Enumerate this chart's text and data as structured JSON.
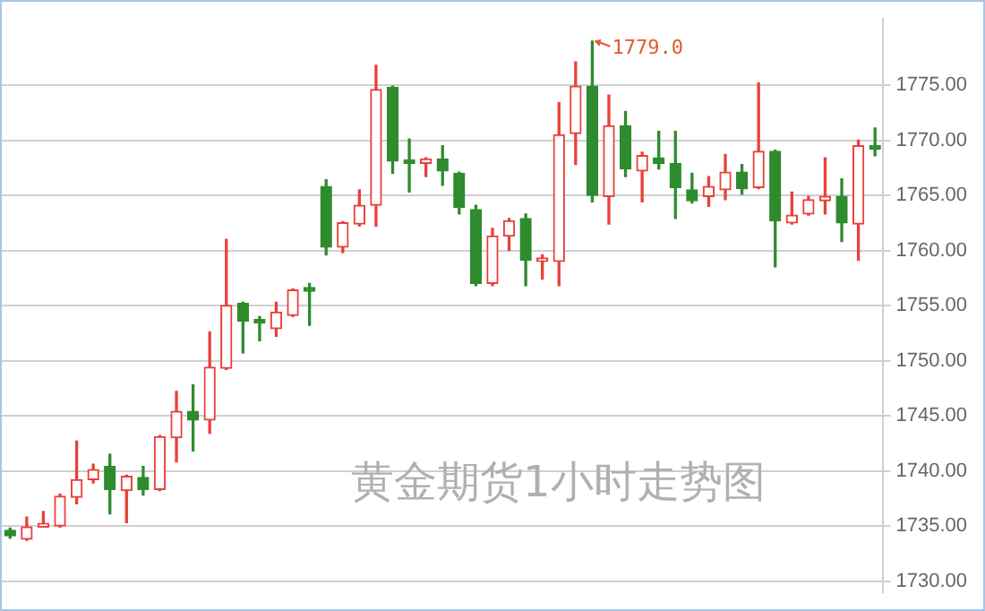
{
  "chart_data": {
    "type": "candlestick",
    "title": "黄金期货1小时走势图",
    "categories": [
      null,
      null,
      null,
      null,
      null,
      null,
      null,
      null,
      null,
      null,
      null,
      null,
      null,
      null,
      null,
      null,
      null,
      null,
      null,
      null,
      null,
      null,
      null,
      null,
      null,
      null,
      null,
      null,
      null,
      null,
      null,
      null,
      null,
      null,
      null,
      null,
      null,
      null,
      null,
      null,
      null,
      null,
      null,
      null,
      null,
      null,
      null,
      null,
      null,
      null,
      null,
      null,
      null
    ],
    "ohlc": [
      [
        1734.6,
        1734.8,
        1733.9,
        1734.1
      ],
      [
        1733.8,
        1735.8,
        1733.7,
        1734.9
      ],
      [
        1734.9,
        1736.3,
        1734.9,
        1735.1
      ],
      [
        1735.0,
        1737.9,
        1734.9,
        1737.7
      ],
      [
        1737.6,
        1742.7,
        1737.0,
        1739.2
      ],
      [
        1739.2,
        1740.6,
        1738.9,
        1740.1
      ],
      [
        1740.4,
        1741.5,
        1736.1,
        1738.3
      ],
      [
        1738.2,
        1739.6,
        1735.3,
        1739.5
      ],
      [
        1739.4,
        1740.4,
        1737.8,
        1738.3
      ],
      [
        1738.3,
        1743.2,
        1738.2,
        1743.1
      ],
      [
        1743.0,
        1747.2,
        1740.8,
        1745.4
      ],
      [
        1745.4,
        1747.8,
        1741.8,
        1744.6
      ],
      [
        1744.6,
        1752.6,
        1743.4,
        1749.4
      ],
      [
        1749.3,
        1761.0,
        1749.2,
        1755.0
      ],
      [
        1755.2,
        1755.3,
        1750.7,
        1753.6
      ],
      [
        1753.5,
        1754.0,
        1751.8,
        1753.4
      ],
      [
        1752.9,
        1755.3,
        1752.2,
        1754.4
      ],
      [
        1754.1,
        1756.5,
        1754.0,
        1756.4
      ],
      [
        1756.4,
        1757.0,
        1753.2,
        1756.3
      ],
      [
        1765.8,
        1766.4,
        1759.6,
        1760.3
      ],
      [
        1760.3,
        1762.6,
        1759.8,
        1762.5
      ],
      [
        1762.4,
        1765.5,
        1762.2,
        1764.1
      ],
      [
        1764.1,
        1776.8,
        1762.2,
        1774.6
      ],
      [
        1774.8,
        1774.9,
        1767.0,
        1768.1
      ],
      [
        1768.0,
        1770.1,
        1765.3,
        1767.9
      ],
      [
        1767.9,
        1768.4,
        1766.7,
        1768.3
      ],
      [
        1768.3,
        1769.5,
        1765.9,
        1767.2
      ],
      [
        1767.0,
        1767.1,
        1763.3,
        1763.9
      ],
      [
        1763.7,
        1764.1,
        1756.8,
        1757.0
      ],
      [
        1757.0,
        1762.0,
        1756.8,
        1761.3
      ],
      [
        1761.3,
        1762.9,
        1760.0,
        1762.7
      ],
      [
        1762.9,
        1763.3,
        1756.8,
        1759.1
      ],
      [
        1759.0,
        1759.6,
        1757.4,
        1759.2
      ],
      [
        1759.0,
        1773.4,
        1756.8,
        1770.5
      ],
      [
        1770.6,
        1777.1,
        1767.8,
        1774.9
      ],
      [
        1774.9,
        1779.0,
        1764.4,
        1765.0
      ],
      [
        1764.9,
        1774.1,
        1762.4,
        1771.3
      ],
      [
        1771.3,
        1772.6,
        1766.7,
        1767.4
      ],
      [
        1767.2,
        1768.9,
        1764.4,
        1768.6
      ],
      [
        1768.4,
        1770.8,
        1767.4,
        1767.9
      ],
      [
        1767.9,
        1770.8,
        1762.9,
        1765.7
      ],
      [
        1765.5,
        1767.0,
        1764.3,
        1764.5
      ],
      [
        1764.9,
        1766.7,
        1764.0,
        1765.8
      ],
      [
        1765.5,
        1768.7,
        1764.6,
        1767.1
      ],
      [
        1767.1,
        1767.8,
        1765.1,
        1765.6
      ],
      [
        1765.7,
        1775.2,
        1765.6,
        1769.0
      ],
      [
        1769.0,
        1769.1,
        1758.5,
        1762.7
      ],
      [
        1762.5,
        1765.3,
        1762.4,
        1763.2
      ],
      [
        1763.3,
        1764.9,
        1763.2,
        1764.6
      ],
      [
        1764.5,
        1768.4,
        1763.3,
        1764.9
      ],
      [
        1764.9,
        1766.5,
        1760.8,
        1762.5
      ],
      [
        1762.4,
        1770.0,
        1759.1,
        1769.5
      ],
      [
        1769.5,
        1771.1,
        1768.6,
        1769.2
      ]
    ],
    "colors": [
      "#2e8b2e",
      "#e8413a",
      "#e8413a",
      "#e8413a",
      "#e8413a",
      "#e8413a",
      "#2e8b2e",
      "#e8413a",
      "#2e8b2e",
      "#e8413a",
      "#e8413a",
      "#2e8b2e",
      "#e8413a",
      "#e8413a",
      "#2e8b2e",
      "#2e8b2e",
      "#e8413a",
      "#e8413a",
      "#2e8b2e",
      "#2e8b2e",
      "#e8413a",
      "#e8413a",
      "#e8413a",
      "#2e8b2e",
      "#2e8b2e",
      "#e8413a",
      "#2e8b2e",
      "#2e8b2e",
      "#2e8b2e",
      "#e8413a",
      "#e8413a",
      "#2e8b2e",
      "#e8413a",
      "#e8413a",
      "#e8413a",
      "#2e8b2e",
      "#e8413a",
      "#2e8b2e",
      "#e8413a",
      "#2e8b2e",
      "#2e8b2e",
      "#2e8b2e",
      "#e8413a",
      "#e8413a",
      "#2e8b2e",
      "#e8413a",
      "#2e8b2e",
      "#e8413a",
      "#e8413a",
      "#e8413a",
      "#2e8b2e",
      "#e8413a",
      "#2e8b2e"
    ],
    "ylim": [
      1729,
      1781
    ],
    "yticks": [
      {
        "value": 1730,
        "label": "1730.00"
      },
      {
        "value": 1735,
        "label": "1735.00"
      },
      {
        "value": 1740,
        "label": "1740.00"
      },
      {
        "value": 1745,
        "label": "1745.00"
      },
      {
        "value": 1750,
        "label": "1750.00"
      },
      {
        "value": 1755,
        "label": "1755.00"
      },
      {
        "value": 1760,
        "label": "1760.00"
      },
      {
        "value": 1765,
        "label": "1765.00"
      },
      {
        "value": 1770,
        "label": "1770.00"
      },
      {
        "value": 1775,
        "label": "1775.00"
      }
    ],
    "annotations": [
      "1779.0"
    ],
    "grid": "y",
    "legend": false,
    "tick_labels": "y"
  }
}
